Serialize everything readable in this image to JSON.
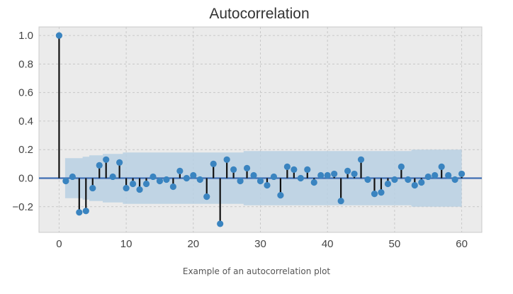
{
  "caption": "Example of an autocorrelation plot",
  "colors": {
    "plot_background": "#ebebeb",
    "grid": "#c8c8c8",
    "confidence_band": "#b8d0e3",
    "stem": "#111111",
    "marker": "#3a84c0",
    "zero_line": "#3f6eb3",
    "axis_text": "#444444"
  },
  "chart_data": {
    "type": "scatter",
    "title": "Autocorrelation",
    "xlabel": "",
    "ylabel": "",
    "xlim": [
      -3,
      63
    ],
    "ylim": [
      -0.38,
      1.06
    ],
    "xticks": [
      0,
      10,
      20,
      30,
      40,
      50,
      60
    ],
    "yticks": [
      -0.2,
      0.0,
      0.2,
      0.4,
      0.6,
      0.8,
      1.0
    ],
    "xtick_labels": [
      "0",
      "10",
      "20",
      "30",
      "40",
      "50",
      "60"
    ],
    "ytick_labels": [
      "−0.2",
      "0.0",
      "0.2",
      "0.4",
      "0.6",
      "0.8",
      "1.0"
    ],
    "grid": true,
    "legend": false,
    "series": [
      {
        "x": [
          0,
          1,
          2,
          3,
          4,
          5,
          6,
          7,
          8,
          9,
          10,
          11,
          12,
          13,
          14,
          15,
          16,
          17,
          18,
          19,
          20,
          21,
          22,
          23,
          24,
          25,
          26,
          27,
          28,
          29,
          30,
          31,
          32,
          33,
          34,
          35,
          36,
          37,
          38,
          39,
          40,
          41,
          42,
          43,
          44,
          45,
          46,
          47,
          48,
          49,
          50,
          51,
          52,
          53,
          54,
          55,
          56,
          57,
          58,
          59,
          60
        ],
        "values": [
          1.0,
          -0.02,
          0.01,
          -0.24,
          -0.23,
          -0.07,
          0.09,
          0.13,
          0.01,
          0.11,
          -0.07,
          -0.04,
          -0.08,
          -0.04,
          0.01,
          -0.02,
          -0.01,
          -0.06,
          0.05,
          0.0,
          0.02,
          -0.01,
          -0.13,
          0.1,
          -0.32,
          0.13,
          0.06,
          -0.02,
          0.07,
          0.02,
          -0.02,
          -0.05,
          0.01,
          -0.12,
          0.08,
          0.06,
          0.0,
          0.06,
          -0.03,
          0.02,
          0.02,
          0.03,
          -0.16,
          0.05,
          0.03,
          0.13,
          -0.01,
          -0.11,
          -0.1,
          -0.04,
          -0.01,
          0.08,
          -0.01,
          -0.05,
          -0.03,
          0.01,
          0.02,
          0.08,
          0.02,
          -0.01,
          0.03
        ]
      }
    ],
    "confidence_band": {
      "x": [
        1,
        2,
        3,
        4,
        5,
        6,
        7,
        8,
        9,
        10,
        15,
        20,
        25,
        30,
        35,
        40,
        45,
        50,
        55,
        60
      ],
      "upper": [
        0.14,
        0.14,
        0.14,
        0.15,
        0.16,
        0.16,
        0.17,
        0.17,
        0.17,
        0.18,
        0.18,
        0.18,
        0.18,
        0.19,
        0.19,
        0.19,
        0.19,
        0.19,
        0.2,
        0.2
      ],
      "lower": [
        -0.14,
        -0.14,
        -0.14,
        -0.15,
        -0.16,
        -0.16,
        -0.17,
        -0.17,
        -0.17,
        -0.18,
        -0.18,
        -0.18,
        -0.18,
        -0.19,
        -0.19,
        -0.19,
        -0.19,
        -0.19,
        -0.2,
        -0.2
      ]
    }
  }
}
